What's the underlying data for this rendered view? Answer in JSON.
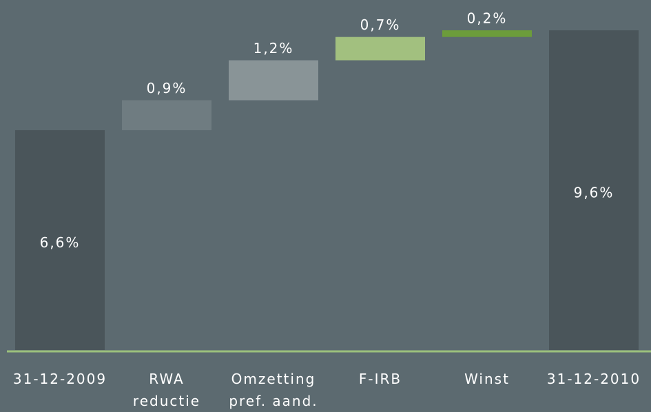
{
  "chart_data": {
    "type": "waterfall",
    "categories": [
      "31-12-2009",
      "RWA\nreductie",
      "Omzetting\npref. aand.",
      "F-IRB",
      "Winst",
      "31-12-2010"
    ],
    "values": [
      6.6,
      0.9,
      1.2,
      0.7,
      0.2,
      9.6
    ],
    "value_labels": [
      "6,6%",
      "0,9%",
      "1,2%",
      "0,7%",
      "0,2%",
      "9,6%"
    ],
    "colors": [
      "#4a555a",
      "#6f7c81",
      "#899497",
      "#a2c07f",
      "#6c9c3b",
      "#4a555a"
    ]
  }
}
